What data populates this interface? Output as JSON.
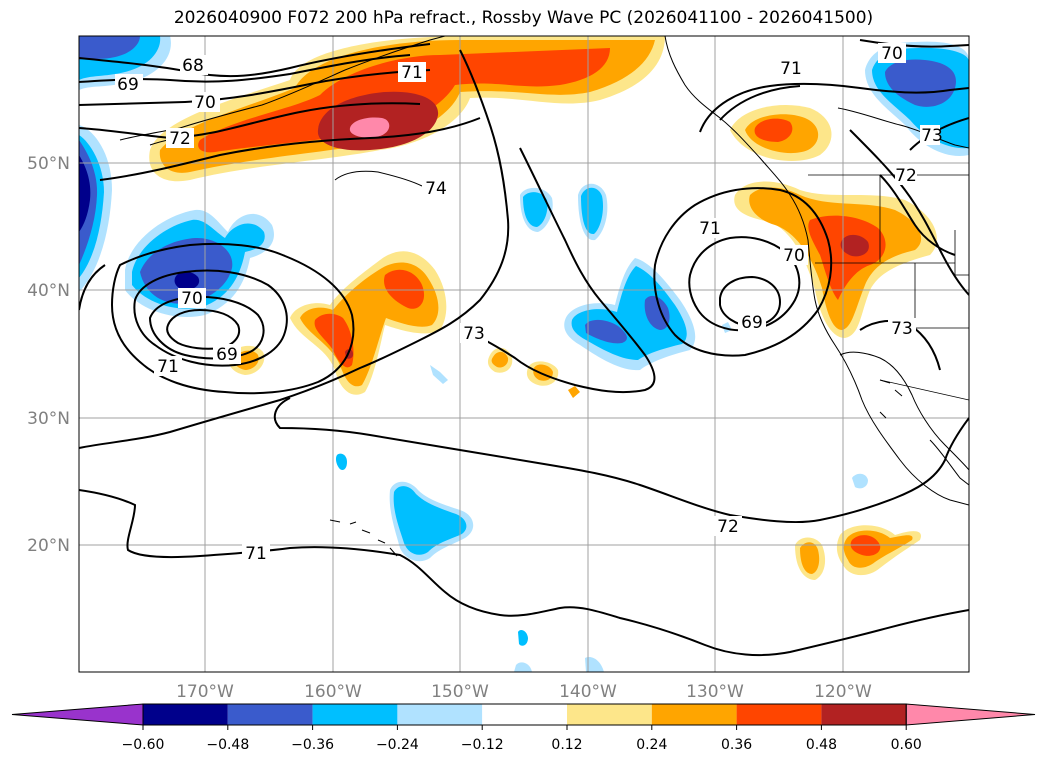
{
  "title": "2026040900 F072 200 hPa refract., Rossby Wave PC (2026041100 - 2026041500)",
  "map": {
    "lat_labels": [
      "50°N",
      "40°N",
      "30°N",
      "20°N"
    ],
    "lon_labels": [
      "170°W",
      "160°W",
      "150°W",
      "140°W",
      "130°W",
      "120°W"
    ],
    "contour_labels": [
      "68",
      "69",
      "70",
      "72",
      "71",
      "74",
      "70",
      "69",
      "71",
      "73",
      "71",
      "70",
      "69",
      "73",
      "72",
      "71",
      "70",
      "73",
      "72"
    ]
  },
  "colorbar": {
    "ticks": [
      "−0.60",
      "−0.48",
      "−0.36",
      "−0.24",
      "−0.12",
      "0.12",
      "0.24",
      "0.36",
      "0.48",
      "0.60"
    ],
    "colors": [
      "#9933cc",
      "#00008b",
      "#3a5bcc",
      "#00bfff",
      "#b0e2ff",
      "#ffffff",
      "#fde68a",
      "#ffa500",
      "#ff4500",
      "#b22222",
      "#ff88aa"
    ]
  },
  "colors": {
    "blue_dark": "#00008b",
    "blue_mid": "#3a5bcc",
    "cyan": "#00bfff",
    "cyan_light": "#b0e2ff",
    "yellow": "#fde68a",
    "orange": "#ffa500",
    "orange_red": "#ff4500",
    "firebrick": "#b22222",
    "pink": "#ff88aa"
  }
}
